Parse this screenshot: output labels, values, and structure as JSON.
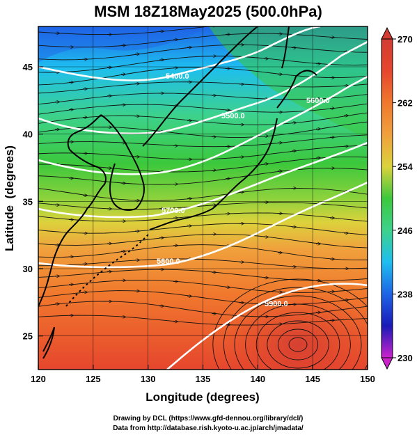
{
  "title": "MSM 18Z18May2025 (500.0hPa)",
  "x_axis": {
    "label": "Longitude (degrees)",
    "range": [
      120,
      150
    ],
    "ticks": [
      120,
      125,
      130,
      135,
      140,
      145,
      150
    ]
  },
  "y_axis": {
    "label": "Latitude  (degrees)",
    "range": [
      22.5,
      48
    ],
    "ticks": [
      25,
      30,
      35,
      40,
      45
    ]
  },
  "colorbar": {
    "min": 230,
    "max": 270,
    "ticks": [
      "270",
      "262",
      "254",
      "246",
      "238",
      "230"
    ],
    "colors": [
      "#cc22cc",
      "#1a1ab8",
      "#1e64e6",
      "#1ebef0",
      "#3cd28c",
      "#3cc83c",
      "#8cd23c",
      "#dcd23c",
      "#f0a03c",
      "#f0782d",
      "#e6462d",
      "#d23c32"
    ]
  },
  "contours": [
    {
      "label": "5400.0"
    },
    {
      "label": "5500.0"
    },
    {
      "label": "5600.0"
    },
    {
      "label": "5700.0"
    },
    {
      "label": "5800.0"
    },
    {
      "label": "5900.0"
    }
  ],
  "credits": {
    "line1": "Drawing by DCL (https://www.gfd-dennou.org/library/dcl/)",
    "line2": "Data from http://database.rish.kyoto-u.ac.jp/arch/jmadata/"
  }
}
